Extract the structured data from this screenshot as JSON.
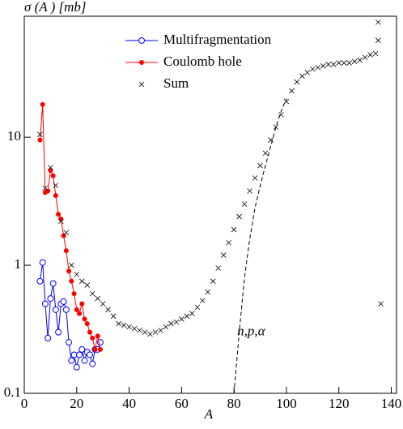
{
  "chart_data": {
    "type": "scatter",
    "ytitle": "σ (A ) [mb]",
    "xlabel": "A",
    "xlim": [
      0,
      142
    ],
    "ylim": [
      0.1,
      88
    ],
    "ylog": true,
    "xticks": [
      0,
      20,
      40,
      60,
      80,
      100,
      120,
      140
    ],
    "yticks": [
      {
        "value": 0.1,
        "label": "0.1"
      },
      1,
      10
    ],
    "legend": "top",
    "series": [
      {
        "name": "Multifragmentation",
        "color": "#0000ff",
        "marker": "open-circle",
        "line": true,
        "x": [
          6,
          7,
          8,
          9,
          10,
          11,
          12,
          13,
          14,
          15,
          16,
          17,
          18,
          19,
          20,
          21,
          22,
          23,
          24,
          25,
          26,
          27,
          28,
          29
        ],
        "values": [
          0.75,
          1.05,
          0.5,
          0.27,
          0.55,
          0.72,
          0.45,
          0.3,
          0.5,
          0.52,
          0.45,
          0.25,
          0.18,
          0.2,
          0.16,
          0.2,
          0.22,
          0.18,
          0.21,
          0.2,
          0.17,
          0.22,
          0.22,
          0.25
        ]
      },
      {
        "name": "Coulomb hole",
        "color": "#ff0000",
        "marker": "filled-circle",
        "line": true,
        "x": [
          6,
          7,
          8,
          9,
          10,
          11,
          12,
          13,
          14,
          15,
          16,
          17,
          18,
          19,
          20,
          21,
          22,
          23,
          24,
          25,
          26,
          27,
          28,
          29
        ],
        "values": [
          9.5,
          18,
          3.7,
          3.8,
          5.5,
          5.0,
          3.5,
          2.5,
          2.3,
          1.7,
          1.3,
          0.9,
          0.75,
          0.6,
          0.45,
          0.42,
          0.5,
          0.38,
          0.35,
          0.3,
          0.27,
          0.22,
          0.28,
          0.22
        ]
      },
      {
        "name": "Sum",
        "color": "#000000",
        "marker": "cross",
        "line": false,
        "x": [
          6,
          8,
          10,
          12,
          14,
          16,
          18,
          20,
          22,
          24,
          26,
          28,
          30,
          32,
          34,
          36,
          38,
          40,
          42,
          44,
          46,
          48,
          50,
          52,
          54,
          56,
          58,
          60,
          62,
          64,
          66,
          68,
          70,
          72,
          74,
          76,
          78,
          80,
          82,
          84,
          86,
          88,
          90,
          92,
          94,
          96,
          98,
          100,
          102,
          104,
          106,
          108,
          110,
          112,
          114,
          116,
          118,
          120,
          122,
          124,
          126,
          128,
          130,
          132,
          134,
          135,
          135,
          136
        ],
        "values": [
          10.5,
          4,
          5.8,
          4.2,
          2.2,
          1.8,
          1.0,
          0.85,
          0.75,
          0.7,
          0.6,
          0.55,
          0.5,
          0.45,
          0.4,
          0.35,
          0.34,
          0.33,
          0.32,
          0.31,
          0.3,
          0.29,
          0.3,
          0.31,
          0.33,
          0.35,
          0.36,
          0.38,
          0.4,
          0.42,
          0.47,
          0.53,
          0.62,
          0.75,
          0.95,
          1.2,
          1.5,
          1.9,
          2.4,
          3.0,
          3.8,
          4.8,
          6.0,
          7.5,
          9.5,
          12,
          15,
          19,
          23,
          27,
          30,
          32,
          34,
          35,
          36,
          37,
          37,
          38,
          38,
          38,
          39,
          40,
          42,
          44,
          45,
          79,
          57,
          0.5
        ]
      },
      {
        "name": "n,p,α",
        "color": "#000000",
        "marker": "none",
        "line": true,
        "dash": true,
        "x": [
          80,
          82,
          84,
          86,
          88,
          90,
          92,
          94,
          96,
          98,
          100
        ],
        "values": [
          0.1,
          0.3,
          0.8,
          1.6,
          2.8,
          4.2,
          6,
          8.5,
          12,
          16,
          20
        ]
      }
    ]
  }
}
